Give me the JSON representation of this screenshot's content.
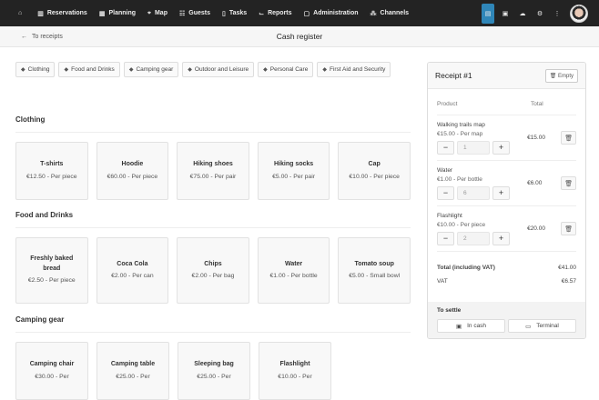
{
  "nav": {
    "home_icon": "home-icon",
    "items": [
      {
        "label": "Reservations",
        "icon": "book-icon"
      },
      {
        "label": "Planning",
        "icon": "calendar-icon"
      },
      {
        "label": "Map",
        "icon": "map-icon"
      },
      {
        "label": "Guests",
        "icon": "users-icon"
      },
      {
        "label": "Tasks",
        "icon": "clipboard-icon"
      },
      {
        "label": "Reports",
        "icon": "chart-icon"
      },
      {
        "label": "Administration",
        "icon": "document-icon"
      },
      {
        "label": "Channels",
        "icon": "sitemap-icon"
      }
    ],
    "accent": "#2f86b8"
  },
  "header": {
    "back_label": "To receipts",
    "title": "Cash register"
  },
  "tags": [
    "Clothing",
    "Food and Drinks",
    "Camping gear",
    "Outdoor and Leisure",
    "Personal Care",
    "First Aid and Security"
  ],
  "categories": [
    {
      "title": "Clothing",
      "products": [
        {
          "name": "T-shirts",
          "price": "€12.50 - Per piece"
        },
        {
          "name": "Hoodie",
          "price": "€60.00 - Per piece"
        },
        {
          "name": "Hiking shoes",
          "price": "€75.00 - Per pair"
        },
        {
          "name": "Hiking socks",
          "price": "€5.00 - Per pair"
        },
        {
          "name": "Cap",
          "price": "€10.00 - Per piece"
        }
      ]
    },
    {
      "title": "Food and Drinks",
      "products": [
        {
          "name": "Freshly baked bread",
          "price": "€2.50 - Per piece"
        },
        {
          "name": "Coca Cola",
          "price": "€2.00 - Per can"
        },
        {
          "name": "Chips",
          "price": "€2.00 - Per bag"
        },
        {
          "name": "Water",
          "price": "€1.00 - Per bottle"
        },
        {
          "name": "Tomato soup",
          "price": "€5.00 - Small bowl"
        }
      ]
    },
    {
      "title": "Camping gear",
      "products": [
        {
          "name": "Camping chair",
          "price": "€30.00 - Per"
        },
        {
          "name": "Camping table",
          "price": "€25.00 - Per"
        },
        {
          "name": "Sleeping bag",
          "price": "€25.00 - Per"
        },
        {
          "name": "Flashlight",
          "price": "€10.00 - Per"
        }
      ]
    }
  ],
  "receipt": {
    "title": "Receipt #1",
    "empty_label": "Empty",
    "col_product": "Product",
    "col_total": "Total",
    "lines": [
      {
        "name": "Walking trails map",
        "price": "€15.00 - Per map",
        "qty": "1",
        "total": "€15.00"
      },
      {
        "name": "Water",
        "price": "€1.00 - Per bottle",
        "qty": "6",
        "total": "€6.00"
      },
      {
        "name": "Flashlight",
        "price": "€10.00 - Per piece",
        "qty": "2",
        "total": "€20.00"
      }
    ],
    "total_label": "Total (including VAT)",
    "total": "€41.00",
    "vat_label": "VAT",
    "vat": "€6.57",
    "settle_label": "To settle",
    "cash_label": "In cash",
    "terminal_label": "Terminal"
  }
}
